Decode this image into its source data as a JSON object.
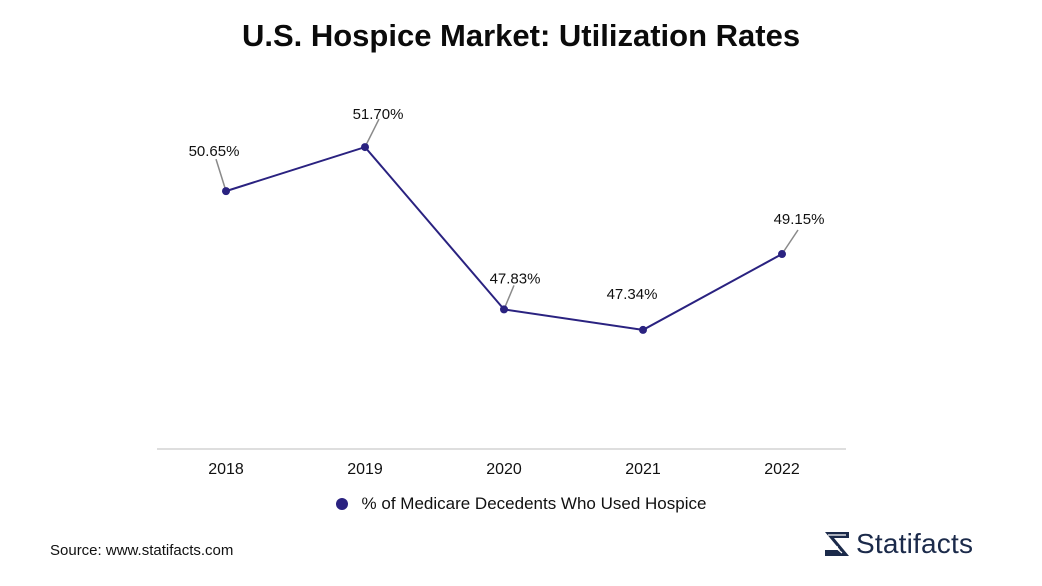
{
  "chart_data": {
    "type": "line",
    "title": "U.S. Hospice Market: Utilization Rates",
    "categories": [
      "2018",
      "2019",
      "2020",
      "2021",
      "2022"
    ],
    "series": [
      {
        "name": "% of Medicare Decedents Who Used Hospice",
        "values": [
          50.65,
          51.7,
          47.83,
          47.34,
          49.15
        ],
        "labels": [
          "50.65%",
          "51.70%",
          "47.83%",
          "47.34%",
          "49.15%"
        ],
        "color": "#2a2280"
      }
    ],
    "xlabel": "",
    "ylabel": "",
    "ylim": [
      44.5,
      53.3
    ],
    "grid": false,
    "legend": "bottom-center"
  },
  "footer": {
    "source": "Source: www.statifacts.com",
    "brand": "Statifacts",
    "brand_color": "#1b2a4a"
  },
  "colors": {
    "axis": "#d4d4d4",
    "leader": "#8a8a8a"
  }
}
